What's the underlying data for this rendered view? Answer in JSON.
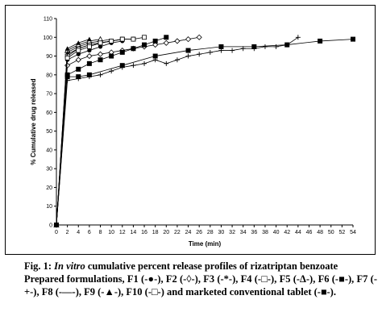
{
  "caption": {
    "fig_label": "Fig. 1:",
    "italic_part": "In vitro",
    "title_rest": "cumulative percent release profiles of rizatriptan benzoate",
    "formulations_text": "Prepared formulations, F1 (-●-), F2 (-◊-), F3 (-*-), F4 (-□-), F5 (-Δ-), F6 (-■-), F7 (-+-), F8 (-—-), F9 (-▲-), F10 (-□-) and marketed conventional tablet (-■-)."
  },
  "chart_data": {
    "type": "line",
    "title": "",
    "xlabel": "Time (min)",
    "ylabel": "% Cumulative drug released",
    "xlim": [
      0,
      54
    ],
    "ylim": [
      0,
      110
    ],
    "xticks": [
      0,
      2,
      4,
      6,
      8,
      10,
      12,
      14,
      16,
      18,
      20,
      22,
      24,
      26,
      28,
      30,
      32,
      34,
      36,
      38,
      40,
      42,
      44,
      46,
      48,
      50,
      52,
      54
    ],
    "yticks": [
      0,
      10,
      20,
      30,
      40,
      50,
      60,
      70,
      80,
      90,
      100,
      110
    ],
    "grid": false,
    "series": [
      {
        "marker": "circle",
        "x": [
          0,
          2,
          4,
          6,
          8,
          10,
          12
        ],
        "y": [
          0,
          88,
          91,
          93,
          95,
          97,
          98
        ]
      },
      {
        "marker": "diamond",
        "x": [
          0,
          2,
          4,
          6,
          8,
          10,
          12,
          14,
          16,
          18,
          20,
          22,
          24,
          26
        ],
        "y": [
          0,
          85,
          88,
          90,
          91,
          92,
          93,
          94,
          95,
          96,
          97,
          98,
          99,
          100
        ]
      },
      {
        "marker": "star",
        "x": [
          0,
          2,
          4,
          6,
          8,
          10,
          12,
          14
        ],
        "y": [
          0,
          91,
          94,
          96,
          97,
          98,
          99,
          99
        ]
      },
      {
        "marker": "square-open",
        "x": [
          0,
          2,
          4,
          6,
          8,
          10,
          12,
          14,
          16
        ],
        "y": [
          0,
          90,
          94,
          96,
          97,
          98,
          99,
          99,
          100
        ]
      },
      {
        "marker": "triangle-open",
        "x": [
          0,
          2,
          4,
          6,
          8
        ],
        "y": [
          0,
          93,
          96,
          98,
          99
        ]
      },
      {
        "marker": "square-filled",
        "x": [
          0,
          2,
          4,
          6,
          8,
          10,
          12,
          14,
          16,
          18,
          20
        ],
        "y": [
          0,
          80,
          83,
          86,
          88,
          90,
          92,
          94,
          96,
          98,
          100
        ]
      },
      {
        "marker": "plus",
        "x": [
          0,
          2,
          4,
          6,
          8,
          10,
          12,
          14,
          16,
          18,
          20,
          22,
          24,
          26,
          28,
          30,
          32,
          34,
          36,
          38,
          40,
          42,
          44
        ],
        "y": [
          0,
          77,
          78,
          79,
          80,
          82,
          84,
          85,
          86,
          88,
          86,
          88,
          90,
          91,
          92,
          93,
          93,
          94,
          94,
          95,
          95,
          96,
          100
        ]
      },
      {
        "marker": "none",
        "x": [
          0,
          2,
          4,
          6,
          8,
          10
        ],
        "y": [
          0,
          92,
          95,
          97,
          98,
          99
        ]
      },
      {
        "marker": "triangle-filled",
        "x": [
          0,
          2,
          4,
          6
        ],
        "y": [
          0,
          94,
          97,
          99
        ]
      },
      {
        "marker": "square-open",
        "x": [
          0,
          2,
          4,
          6,
          8,
          10,
          12,
          14
        ],
        "y": [
          0,
          89,
          93,
          95,
          97,
          98,
          99,
          99
        ]
      },
      {
        "marker": "square-filled",
        "x": [
          0,
          2,
          4,
          6,
          12,
          18,
          24,
          30,
          36,
          42,
          48,
          54
        ],
        "y": [
          0,
          79,
          79,
          80,
          85,
          90,
          93,
          95,
          95,
          96,
          98,
          99
        ]
      }
    ]
  }
}
